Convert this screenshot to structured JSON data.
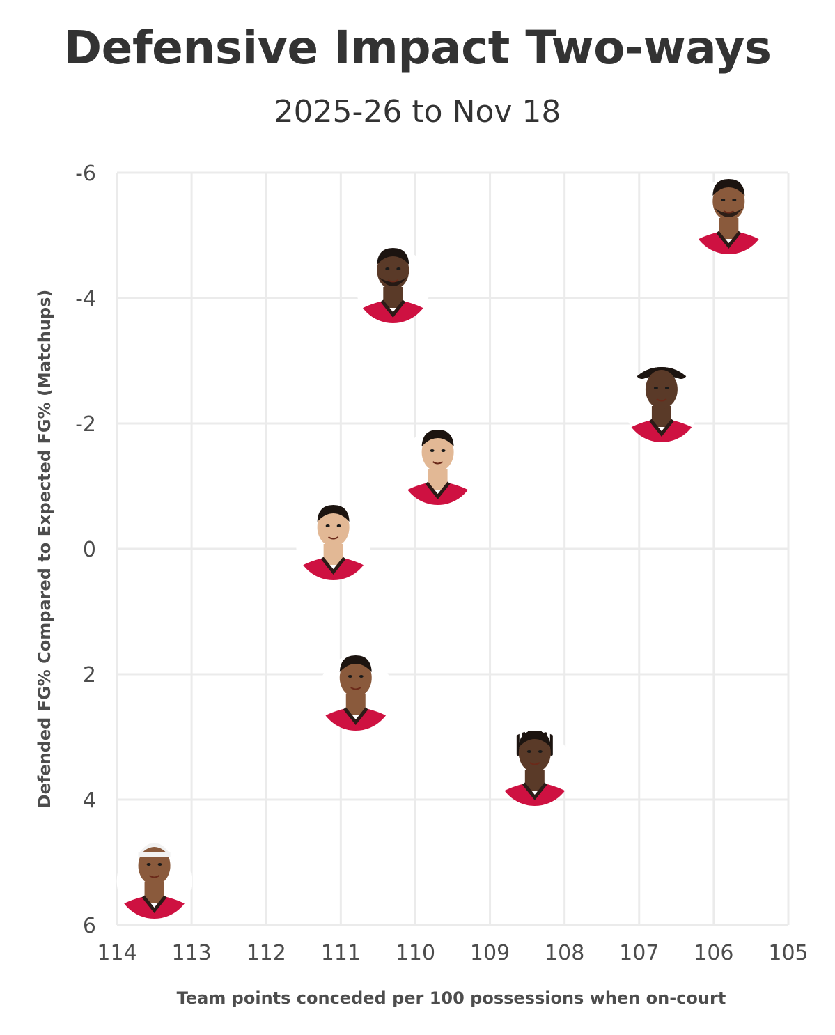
{
  "title": "Defensive Impact Two-ways",
  "subtitle": "2025-26 to Nov 18",
  "colors": {
    "grid": "#ebebeb",
    "text": "#333333",
    "tick": "#4d4d4d",
    "jersey": "#ce1141",
    "jersey_trim": "#2b1b17",
    "skin_dark": "#5a3a28",
    "skin_medium": "#8a5a3c",
    "skin_light": "#e2b895",
    "hair": "#1c1410"
  },
  "chart_data": {
    "type": "scatter",
    "title": "Defensive Impact Two-ways",
    "subtitle": "2025-26 to Nov 18",
    "xlabel": "Team points conceded per 100 possessions when on-court",
    "ylabel": "Defended FG% Compared to Expected FG% (Matchups)",
    "xlim": [
      114,
      105
    ],
    "ylim": [
      6,
      -6
    ],
    "x_reversed": true,
    "y_reversed": true,
    "x_ticks": [
      "114",
      "113",
      "112",
      "111",
      "110",
      "109",
      "108",
      "107",
      "106",
      "105"
    ],
    "y_ticks": [
      "-6",
      "-4",
      "-2",
      "0",
      "2",
      "4",
      "6"
    ],
    "grid": true,
    "markers": "player headshots",
    "points": [
      {
        "x": 105.8,
        "y": -5.3,
        "icon": "player-headshot-icon",
        "skin": "skin_medium",
        "hair": "beard-tattoo"
      },
      {
        "x": 110.3,
        "y": -4.2,
        "icon": "player-headshot-icon",
        "skin": "skin_dark",
        "hair": "short"
      },
      {
        "x": 106.7,
        "y": -2.3,
        "icon": "player-headshot-icon",
        "skin": "skin_dark",
        "hair": "curly"
      },
      {
        "x": 109.7,
        "y": -1.3,
        "icon": "player-headshot-icon",
        "skin": "skin_light",
        "hair": "short"
      },
      {
        "x": 111.1,
        "y": -0.1,
        "icon": "player-headshot-icon",
        "skin": "skin_light",
        "hair": "short"
      },
      {
        "x": 110.8,
        "y": 2.3,
        "icon": "player-headshot-icon",
        "skin": "skin_medium",
        "hair": "short"
      },
      {
        "x": 108.4,
        "y": 3.5,
        "icon": "player-headshot-icon",
        "skin": "skin_dark",
        "hair": "braids"
      },
      {
        "x": 113.5,
        "y": 5.3,
        "icon": "player-headshot-icon",
        "skin": "skin_medium",
        "hair": "headband"
      }
    ]
  }
}
